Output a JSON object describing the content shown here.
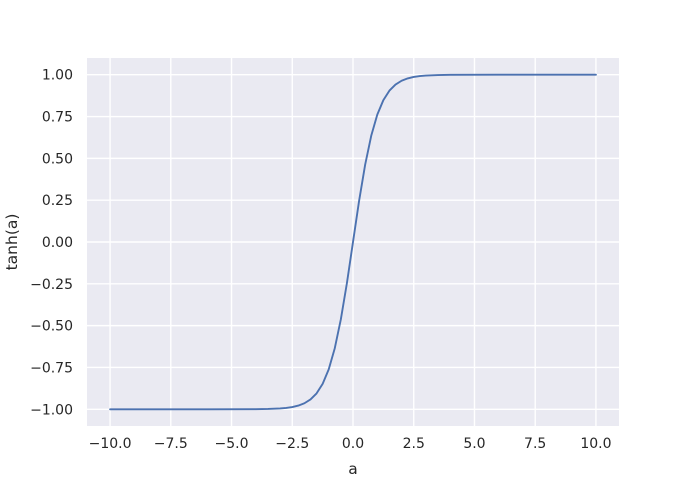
{
  "chart_data": {
    "type": "line",
    "title": "",
    "xlabel": "a",
    "ylabel": "tanh(a)",
    "xlim": [
      -10.95,
      10.95
    ],
    "ylim": [
      -1.1,
      1.1
    ],
    "xticks": [
      -10,
      -7.5,
      -5,
      -2.5,
      0,
      2.5,
      5,
      7.5,
      10
    ],
    "xtick_labels": [
      "−10.0",
      "−7.5",
      "−5.0",
      "−2.5",
      "0.0",
      "2.5",
      "5.0",
      "7.5",
      "10.0"
    ],
    "yticks": [
      -1,
      -0.75,
      -0.5,
      -0.25,
      0,
      0.25,
      0.5,
      0.75,
      1
    ],
    "ytick_labels": [
      "−1.00",
      "−0.75",
      "−0.50",
      "−0.25",
      "0.00",
      "0.25",
      "0.50",
      "0.75",
      "1.00"
    ],
    "grid": true,
    "legend": false,
    "series": [
      {
        "color": "#4c72b0",
        "x": [
          -10,
          -6,
          -4,
          -3.5,
          -3,
          -2.75,
          -2.5,
          -2.25,
          -2,
          -1.75,
          -1.5,
          -1.25,
          -1,
          -0.75,
          -0.5,
          -0.25,
          0,
          0.25,
          0.5,
          0.75,
          1,
          1.25,
          1.5,
          1.75,
          2,
          2.25,
          2.5,
          2.75,
          3,
          3.5,
          4,
          6,
          10
        ],
        "y": [
          -1.0,
          -1.0,
          -0.9993,
          -0.9982,
          -0.9951,
          -0.9918,
          -0.9866,
          -0.978,
          -0.964,
          -0.9414,
          -0.9051,
          -0.8483,
          -0.7616,
          -0.6351,
          -0.4621,
          -0.2449,
          0.0,
          0.2449,
          0.4621,
          0.6351,
          0.7616,
          0.8483,
          0.9051,
          0.9414,
          0.964,
          0.978,
          0.9866,
          0.9918,
          0.9951,
          0.9982,
          0.9993,
          1.0,
          1.0
        ]
      }
    ]
  },
  "colors": {
    "plot_background": "#eaeaf2",
    "grid": "#ffffff",
    "text": "#262626",
    "line": "#4c72b0"
  }
}
